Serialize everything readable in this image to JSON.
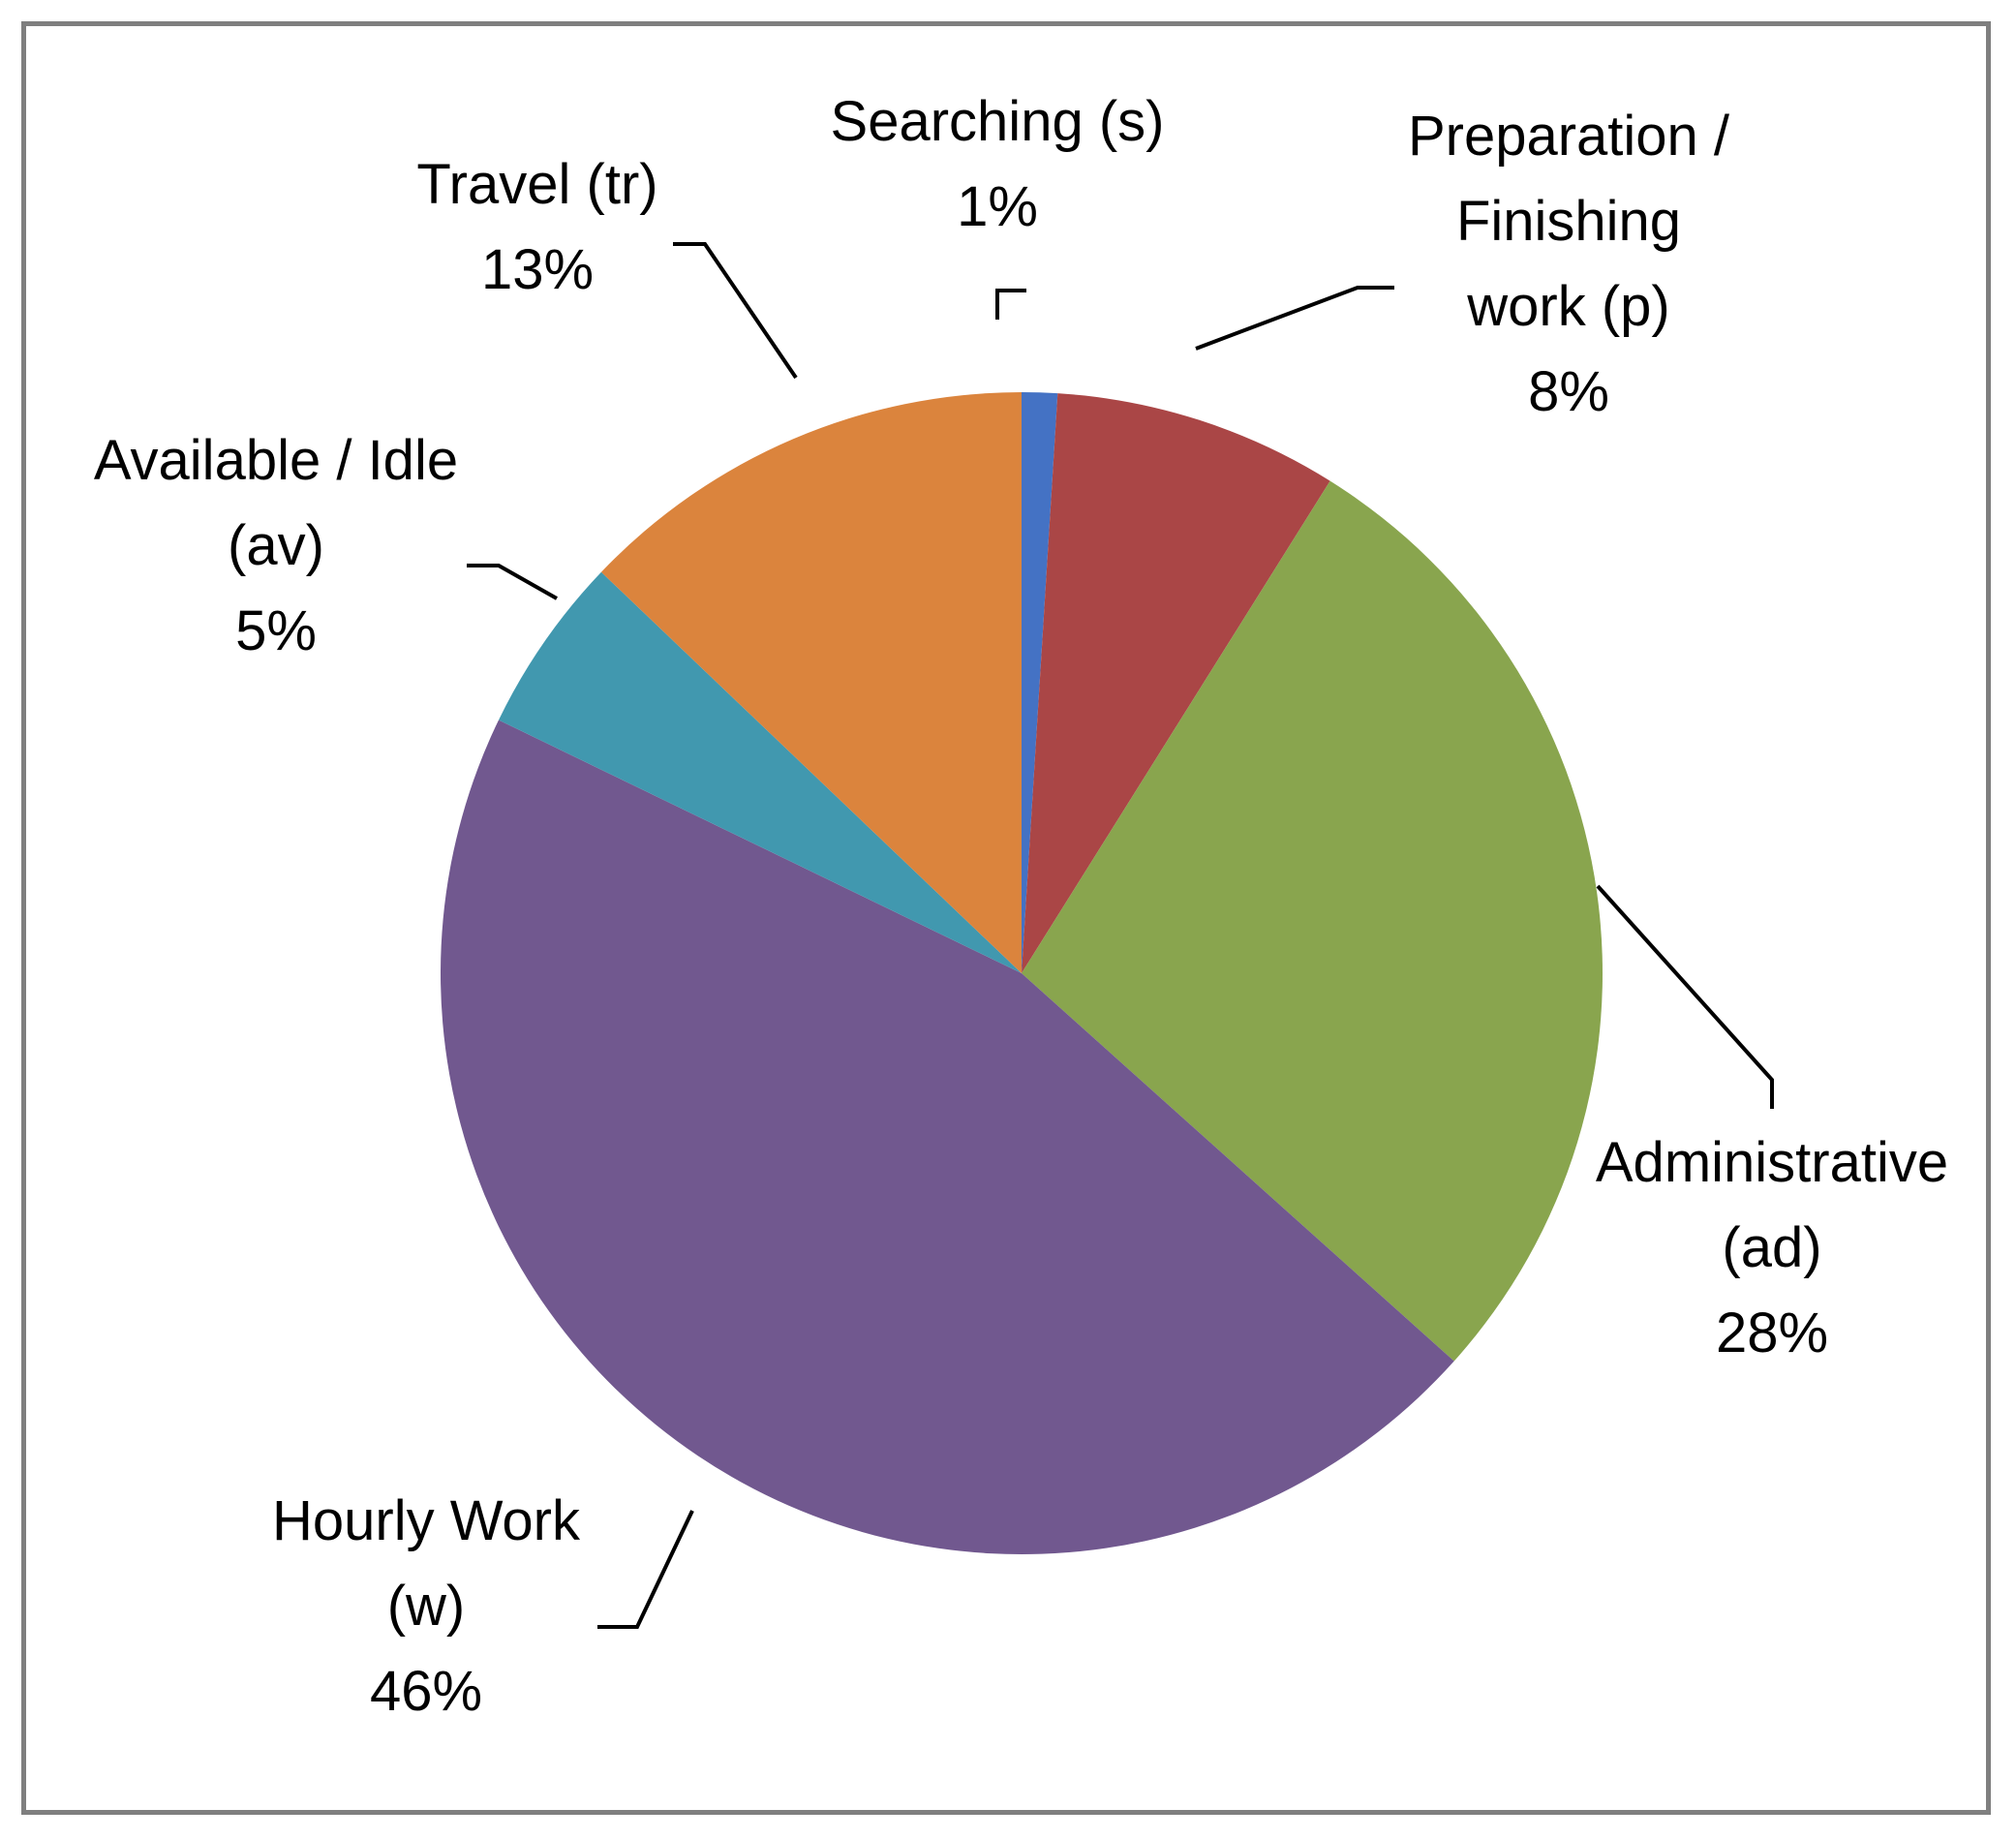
{
  "chart_data": {
    "type": "pie",
    "title": "",
    "slices": [
      {
        "label": [
          "Searching (s)"
        ],
        "name": "Searching (s)",
        "value": 1,
        "percent_label": "1%",
        "color": "#4472c4"
      },
      {
        "label": [
          "Preparation /",
          "Finishing",
          "work (p)"
        ],
        "name": "Preparation / Finishing work (p)",
        "value": 8,
        "percent_label": "8%",
        "color": "#aa4646"
      },
      {
        "label": [
          "Administrative",
          "(ad)"
        ],
        "name": "Administrative (ad)",
        "value": 28,
        "percent_label": "28%",
        "color": "#89a54e"
      },
      {
        "label": [
          "Hourly Work",
          "(w)"
        ],
        "name": "Hourly Work (w)",
        "value": 46,
        "percent_label": "46%",
        "color": "#71588f"
      },
      {
        "label": [
          "Available / Idle",
          "(av)"
        ],
        "name": "Available / Idle (av)",
        "value": 5,
        "percent_label": "5%",
        "color": "#4198af"
      },
      {
        "label": [
          "Travel (tr)"
        ],
        "name": "Travel (tr)",
        "value": 13,
        "percent_label": "13%",
        "color": "#db843d"
      }
    ],
    "start_angle_deg": 0,
    "direction": "clockwise",
    "legend": "none",
    "data_labels": "outside with leader lines"
  }
}
